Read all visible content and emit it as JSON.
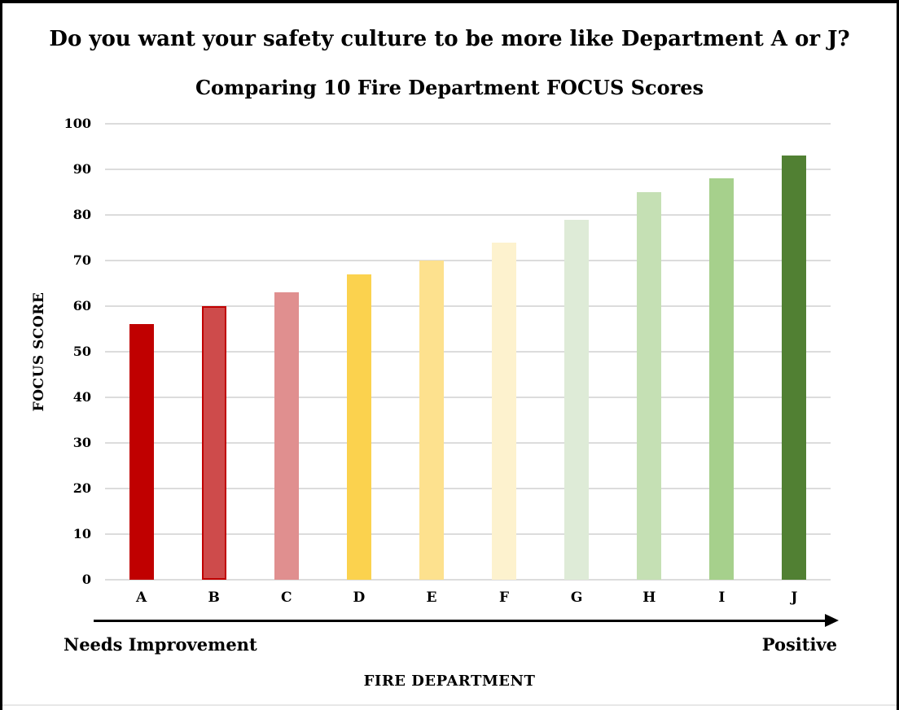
{
  "header": {
    "question": "Do you want your safety culture to be more like Department A or J?",
    "chart_title": "Comparing 10 Fire Department FOCUS Scores"
  },
  "chart_data": {
    "type": "bar",
    "title": "Comparing 10 Fire Department FOCUS Scores",
    "subtitle": "Do you want your safety culture to be more like Department A or J?",
    "categories": [
      "A",
      "B",
      "C",
      "D",
      "E",
      "F",
      "G",
      "H",
      "I",
      "J"
    ],
    "values": [
      56,
      60,
      63,
      67,
      70,
      74,
      79,
      85,
      88,
      93
    ],
    "bar_colors": [
      "#C00000",
      "#CE4B4B",
      "#E08F8F",
      "#FBD24E",
      "#FDE18E",
      "#FDF2CE",
      "#DEEBD7",
      "#C5E0B4",
      "#A6D08C",
      "#518033"
    ],
    "bar_border_colors": [
      "none",
      "#C00000",
      "none",
      "none",
      "none",
      "none",
      "none",
      "none",
      "none",
      "none"
    ],
    "xlabel": "FIRE DEPARTMENT",
    "ylabel": "FOCUS SCORE",
    "ylim": [
      0,
      100
    ],
    "yticks": [
      0,
      10,
      20,
      30,
      40,
      50,
      60,
      70,
      80,
      90,
      100
    ],
    "grid": true,
    "gridline_color": "#DCDCDC",
    "legend_position": "none",
    "annotations": {
      "left_of_axis": "Needs Improvement",
      "right_of_axis": "Positive"
    }
  }
}
